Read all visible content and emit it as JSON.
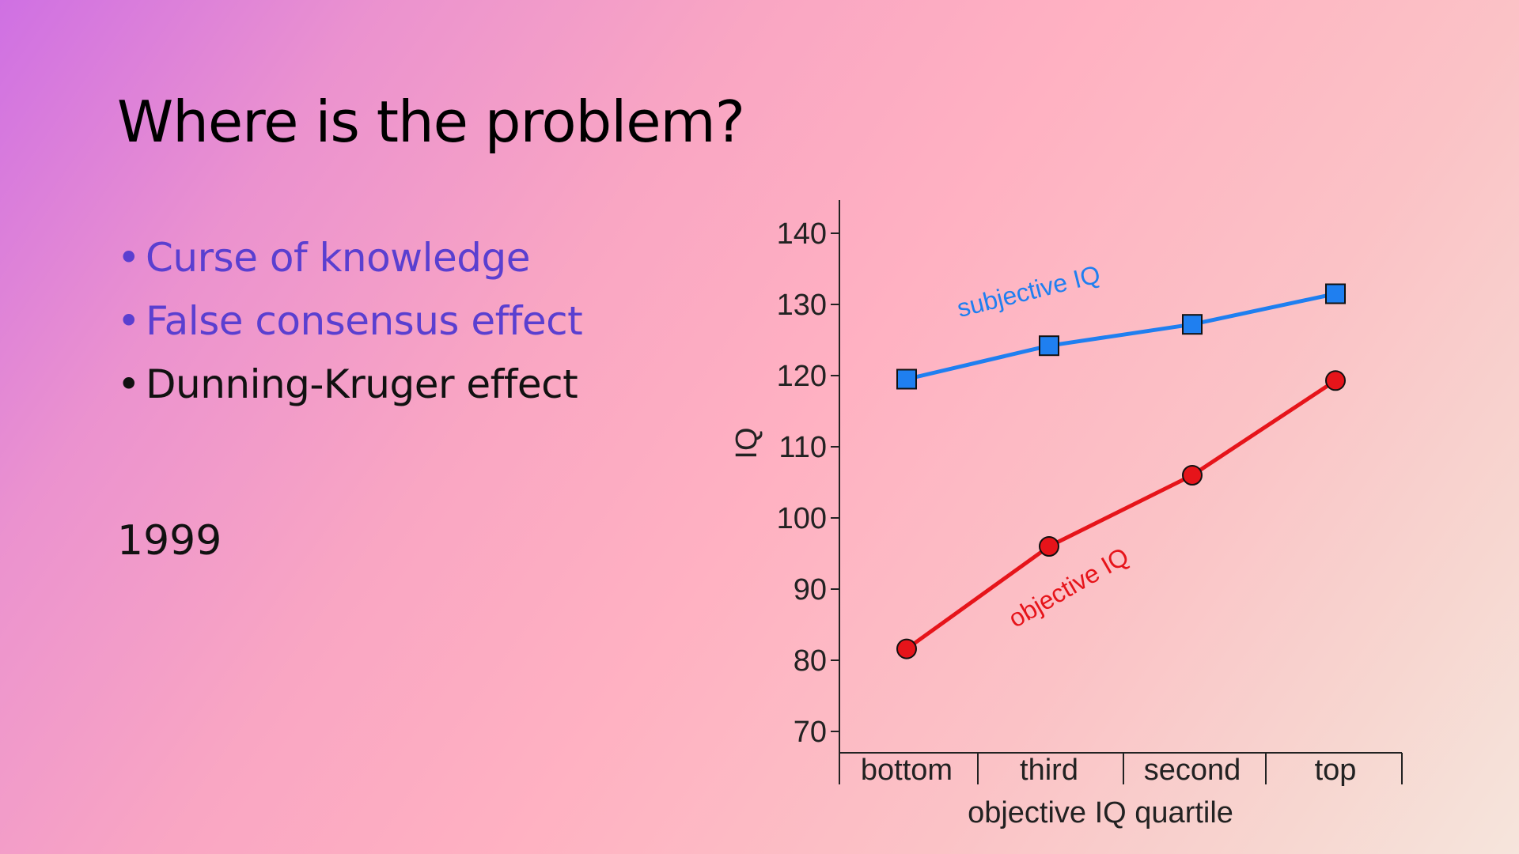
{
  "slide": {
    "title": "Where is the problem?",
    "bullets": [
      {
        "text": "Curse of knowledge",
        "state": "muted"
      },
      {
        "text": "False consensus effect",
        "state": "muted"
      },
      {
        "text": "Dunning-Kruger effect",
        "state": "active"
      }
    ],
    "year": "1999"
  },
  "colors": {
    "muted_bullet": "#5a3fd0",
    "subjective": "#1f7ff0",
    "objective": "#e6141a"
  },
  "chart_data": {
    "type": "line",
    "title": "",
    "xlabel": "objective IQ quartile",
    "ylabel": "IQ",
    "categories": [
      "bottom",
      "third",
      "second",
      "top"
    ],
    "ylim": [
      67,
      144
    ],
    "yticks": [
      70,
      80,
      90,
      100,
      110,
      120,
      130,
      140
    ],
    "grid": false,
    "series": [
      {
        "name": "subjective IQ",
        "marker": "square",
        "color": "#1f7ff0",
        "values": [
          119.5,
          124.2,
          127.2,
          131.5
        ]
      },
      {
        "name": "objective IQ",
        "marker": "circle",
        "color": "#e6141a",
        "values": [
          81.6,
          96,
          106,
          119.3
        ]
      }
    ]
  }
}
